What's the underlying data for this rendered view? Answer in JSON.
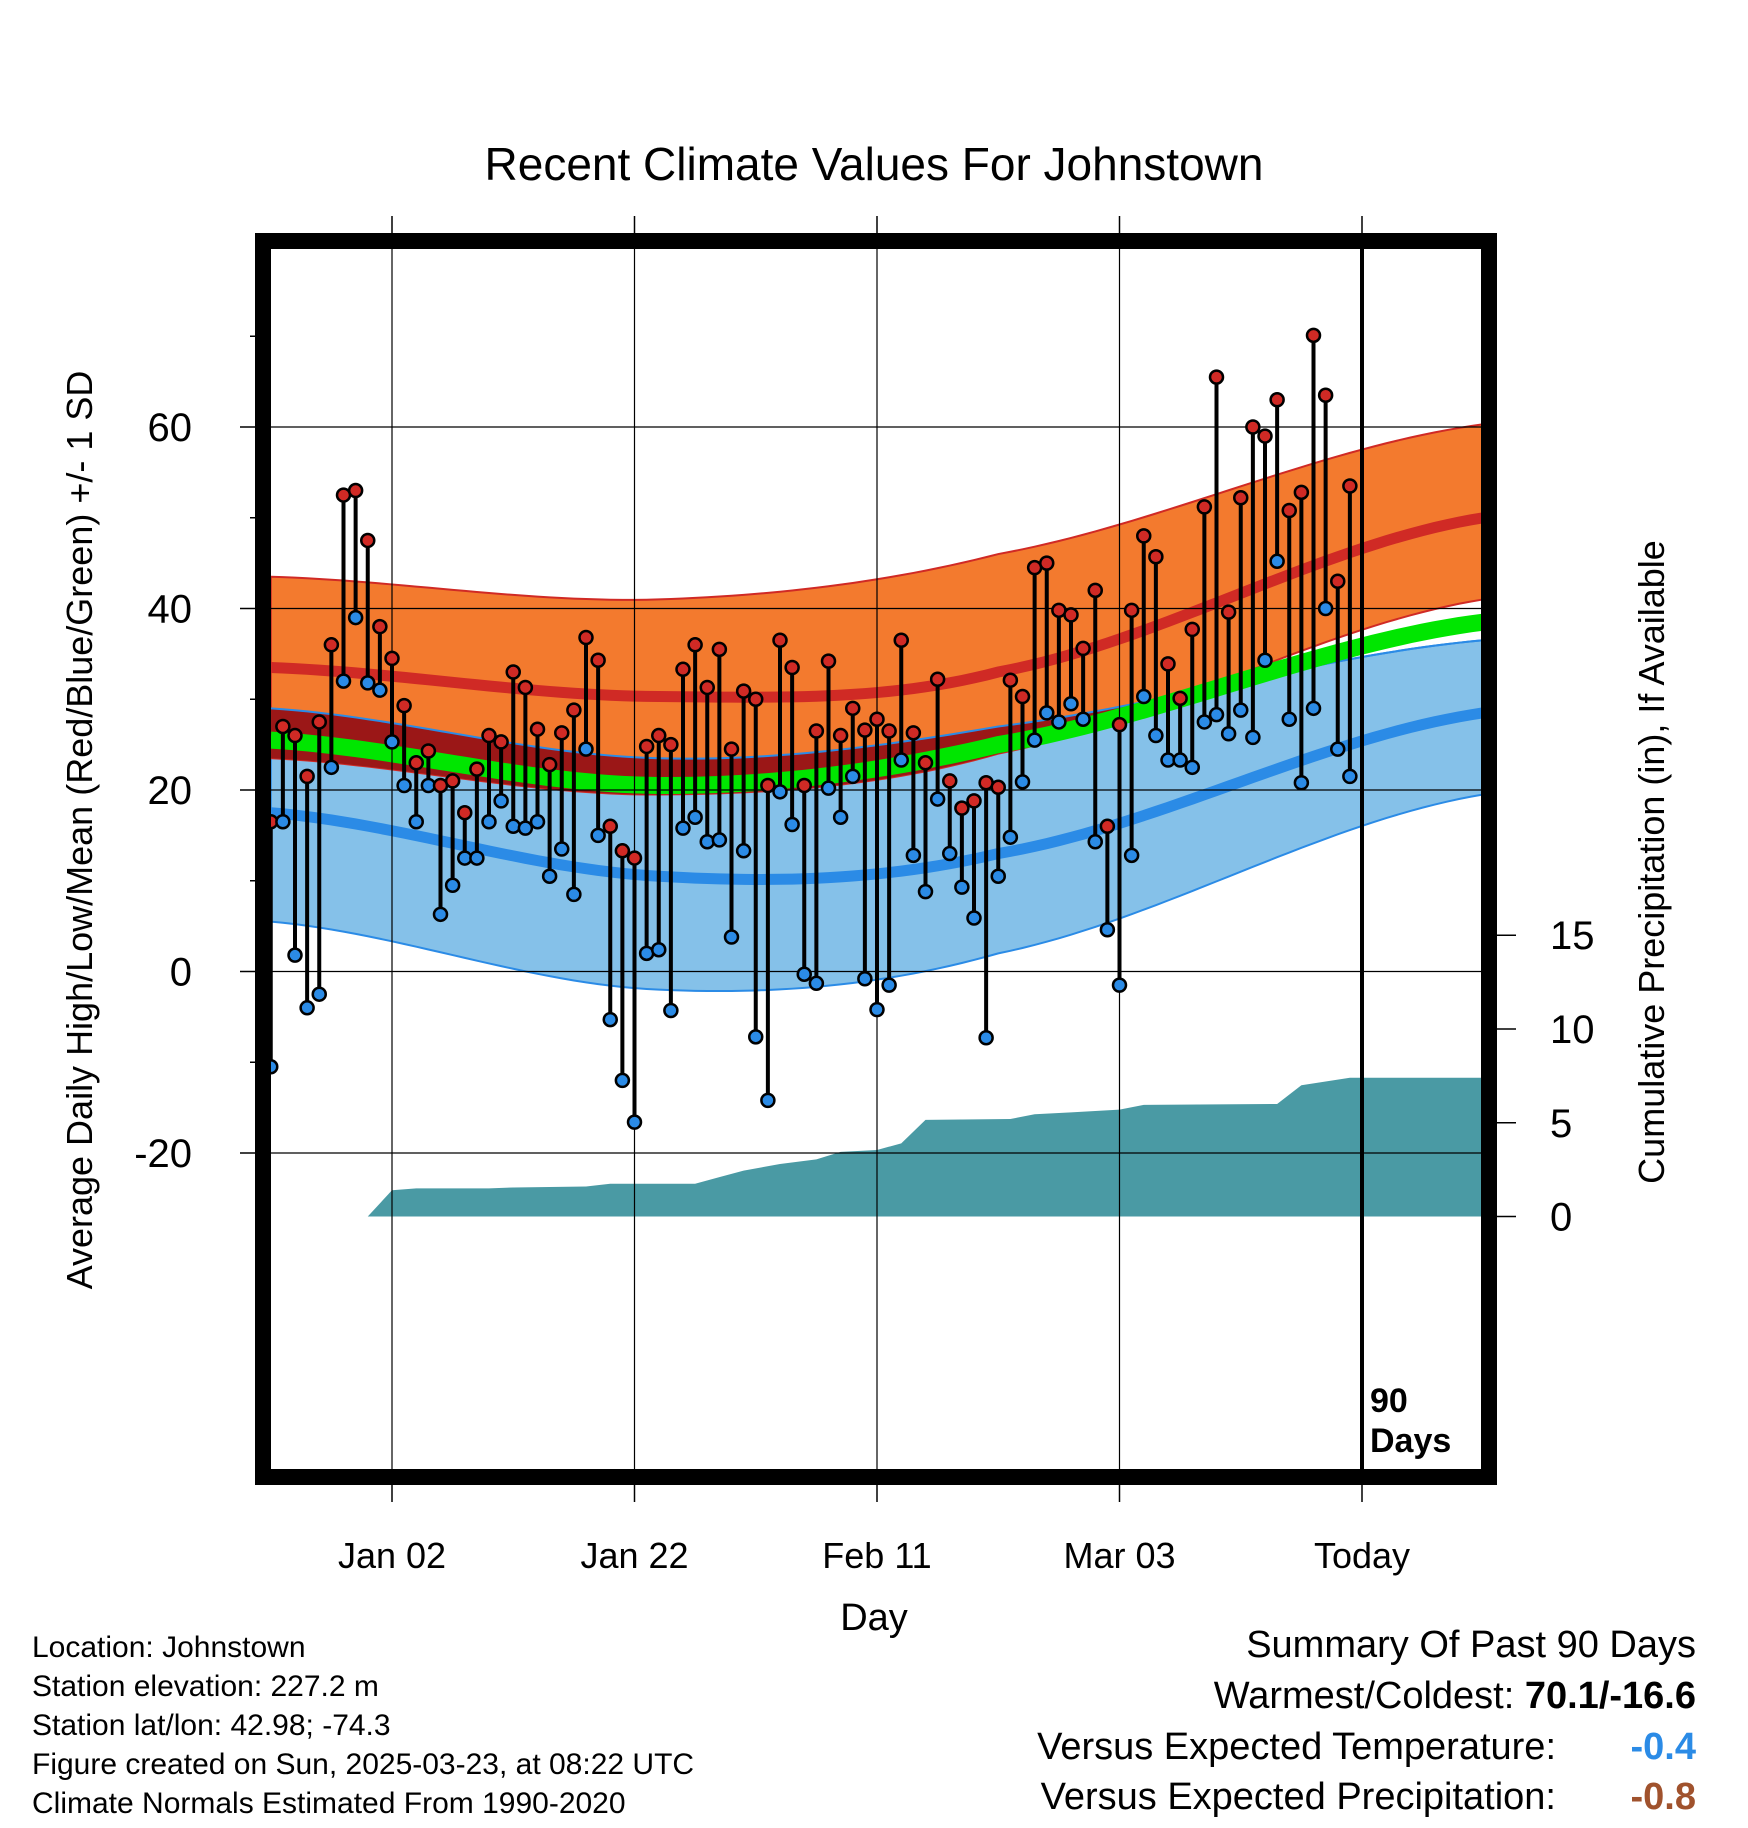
{
  "chart_data": {
    "type": "line",
    "title": "Recent Climate Values For Johnstown",
    "xlabel": "Day",
    "ylabel": "Average Daily High/Low/Mean (Red/Blue/Green) +/- 1 SD",
    "y2label": "Cumulative Precipitation (in), If Available",
    "x_ticks": [
      {
        "day": 10,
        "label": "Jan 02"
      },
      {
        "day": 30,
        "label": "Jan 22"
      },
      {
        "day": 50,
        "label": "Feb 11"
      },
      {
        "day": 70,
        "label": "Mar 03"
      },
      {
        "day": 90,
        "label": "Today"
      }
    ],
    "xlim": [
      0,
      100
    ],
    "ylim": [
      -27,
      75
    ],
    "y_ticks": [
      -20,
      0,
      20,
      40,
      60
    ],
    "y2_ticks": [
      0,
      5,
      10,
      15
    ],
    "y2_range_in_y_units": {
      "zero_at": -27,
      "fifteen_at": 4
    },
    "today_marker_label_1": "90",
    "today_marker_label_2": "Days",
    "normals": {
      "high_mean": [
        33.5,
        30.3,
        33,
        50
      ],
      "high_sd_upper": [
        43.5,
        41,
        46,
        60.3
      ],
      "high_sd_lower": [
        23.5,
        19.5,
        24,
        41
      ],
      "low_mean": [
        17.5,
        10.5,
        13,
        28.5
      ],
      "low_sd_upper": [
        29,
        23.5,
        27,
        36.5
      ],
      "low_sd_lower": [
        5.5,
        -2,
        2,
        19.5
      ],
      "mean": [
        25.5,
        20.5,
        25,
        38.5
      ],
      "control_days": [
        0,
        32,
        60,
        100
      ]
    },
    "series": [
      {
        "name": "High",
        "color": "#d02a25"
      },
      {
        "name": "Low",
        "color": "#2b8be6"
      }
    ],
    "daily": [
      [
        0,
        16.5,
        -10.5
      ],
      [
        1,
        27,
        16.5
      ],
      [
        2,
        26,
        1.8
      ],
      [
        3,
        21.5,
        -4
      ],
      [
        4,
        27.5,
        -2.5
      ],
      [
        5,
        36,
        22.5
      ],
      [
        6,
        52.5,
        32
      ],
      [
        7,
        53,
        39
      ],
      [
        8,
        47.5,
        31.8
      ],
      [
        9,
        38,
        31
      ],
      [
        10,
        34.5,
        25.3
      ],
      [
        11,
        29.3,
        20.5
      ],
      [
        12,
        23,
        16.5
      ],
      [
        13,
        24.3,
        20.5
      ],
      [
        14,
        20.5,
        6.3
      ],
      [
        15,
        21,
        9.5
      ],
      [
        16,
        17.5,
        12.5
      ],
      [
        17,
        22.3,
        12.5
      ],
      [
        18,
        26,
        16.5
      ],
      [
        19,
        25.3,
        18.8
      ],
      [
        20,
        33,
        16
      ],
      [
        21,
        31.3,
        15.8
      ],
      [
        22,
        26.7,
        16.5
      ],
      [
        23,
        22.8,
        10.5
      ],
      [
        24,
        26.3,
        13.5
      ],
      [
        25,
        28.8,
        8.5
      ],
      [
        26,
        36.8,
        24.5
      ],
      [
        27,
        34.3,
        15
      ],
      [
        28,
        16,
        -5.3
      ],
      [
        29,
        13.3,
        -12
      ],
      [
        30,
        12.5,
        -16.6
      ],
      [
        31,
        24.8,
        2
      ],
      [
        32,
        26,
        2.4
      ],
      [
        33,
        25,
        -4.3
      ],
      [
        34,
        33.3,
        15.8
      ],
      [
        35,
        36,
        17
      ],
      [
        36,
        31.3,
        14.3
      ],
      [
        37,
        35.5,
        14.5
      ],
      [
        38,
        24.5,
        3.8
      ],
      [
        39,
        30.9,
        13.3
      ],
      [
        40,
        30,
        -7.2
      ],
      [
        41,
        20.5,
        -14.2
      ],
      [
        42,
        36.5,
        19.8
      ],
      [
        43,
        33.5,
        16.2
      ],
      [
        44,
        20.5,
        -0.3
      ],
      [
        45,
        26.5,
        -1.3
      ],
      [
        46,
        34.2,
        20.2
      ],
      [
        47,
        26,
        17
      ],
      [
        48,
        29,
        21.5
      ],
      [
        49,
        26.6,
        -0.8
      ],
      [
        50,
        27.8,
        -4.2
      ],
      [
        51,
        26.5,
        -1.5
      ],
      [
        52,
        36.5,
        23.3
      ],
      [
        53,
        26.3,
        12.8
      ],
      [
        54,
        23,
        8.8
      ],
      [
        55,
        32.2,
        19
      ],
      [
        56,
        21,
        13
      ],
      [
        57,
        18,
        9.3
      ],
      [
        58,
        18.8,
        5.9
      ],
      [
        59,
        20.8,
        -7.3
      ],
      [
        60,
        20.3,
        10.5
      ],
      [
        61,
        32.1,
        14.8
      ],
      [
        62,
        30.3,
        20.9
      ],
      [
        63,
        44.5,
        25.5
      ],
      [
        64,
        45,
        28.5
      ],
      [
        65,
        39.8,
        27.5
      ],
      [
        66,
        39.3,
        29.5
      ],
      [
        67,
        35.6,
        27.8
      ],
      [
        68,
        42,
        14.3
      ],
      [
        69,
        16,
        4.6
      ],
      [
        70,
        27.2,
        -1.5
      ],
      [
        71,
        39.8,
        12.8
      ],
      [
        72,
        48,
        30.3
      ],
      [
        73,
        45.7,
        26
      ],
      [
        74,
        33.9,
        23.3
      ],
      [
        75,
        30.1,
        23.3
      ],
      [
        76,
        37.7,
        22.5
      ],
      [
        77,
        51.2,
        27.5
      ],
      [
        78,
        65.5,
        28.3
      ],
      [
        79,
        39.6,
        26.2
      ],
      [
        80,
        52.2,
        28.8
      ],
      [
        81,
        60,
        25.8
      ],
      [
        82,
        59,
        34.3
      ],
      [
        83,
        63,
        45.2
      ],
      [
        84,
        50.8,
        27.8
      ],
      [
        85,
        52.8,
        20.8
      ],
      [
        86,
        70.1,
        29
      ],
      [
        87,
        63.5,
        40
      ],
      [
        88,
        43,
        24.5
      ],
      [
        89,
        53.5,
        21.5
      ]
    ],
    "precip_cumulative": [
      [
        0,
        0
      ],
      [
        8,
        0
      ],
      [
        10,
        1.4
      ],
      [
        12,
        1.5
      ],
      [
        18,
        1.5
      ],
      [
        20,
        1.55
      ],
      [
        26,
        1.6
      ],
      [
        28,
        1.75
      ],
      [
        35,
        1.75
      ],
      [
        37,
        2.1
      ],
      [
        39,
        2.45
      ],
      [
        42,
        2.8
      ],
      [
        45,
        3.05
      ],
      [
        47,
        3.45
      ],
      [
        50,
        3.55
      ],
      [
        52,
        3.9
      ],
      [
        54,
        5.15
      ],
      [
        61,
        5.2
      ],
      [
        63,
        5.45
      ],
      [
        66,
        5.55
      ],
      [
        70,
        5.7
      ],
      [
        72,
        5.95
      ],
      [
        83,
        6.0
      ],
      [
        85,
        7.0
      ],
      [
        89,
        7.4
      ],
      [
        100,
        7.4
      ]
    ]
  },
  "info": {
    "location": "Location: Johnstown",
    "elevation": "Station elevation: 227.2 m",
    "latlon": "Station lat/lon: 42.98; -74.3",
    "created": "Figure created on Sun, 2025-03-23, at 08:22 UTC",
    "normals": "Climate Normals Estimated From 1990-2020"
  },
  "summary": {
    "title": "Summary Of Past 90 Days",
    "warmest_label": "Warmest/Coldest: ",
    "warmest_value": "70.1/-16.6",
    "temp_label": "Versus Expected Temperature:",
    "temp_value": "-0.4",
    "temp_color": "#2b8be6",
    "precip_label": "Versus Expected Precipitation:",
    "precip_value": "-0.8",
    "precip_color": "#a0522d"
  },
  "colors": {
    "high_band": "#f37a2e",
    "high_line": "#d02a25",
    "low_band": "#85c1e9",
    "low_line": "#2b8be6",
    "mean_line": "#00e600",
    "overlap_band": "#9b1717",
    "precip": "#4a9aa4"
  }
}
